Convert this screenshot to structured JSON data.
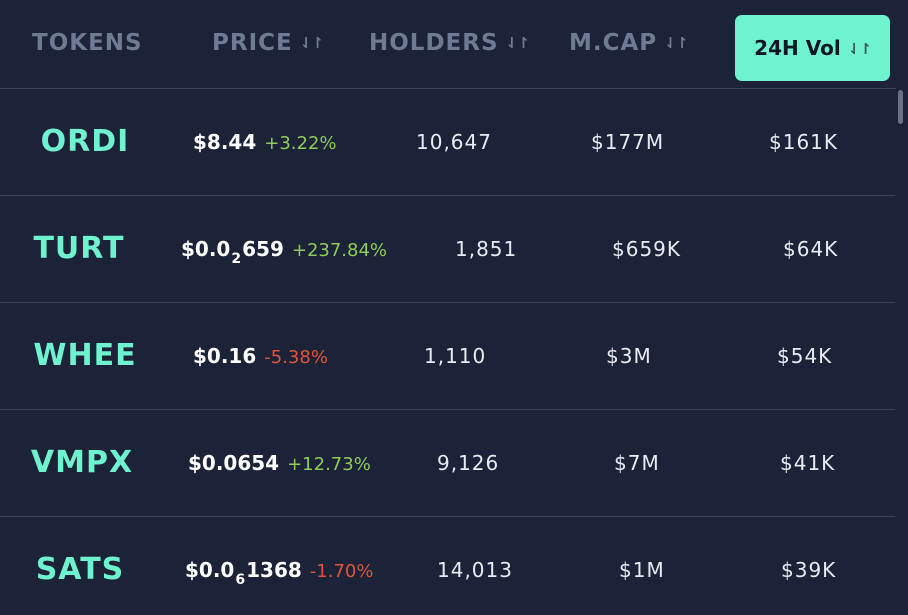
{
  "header": {
    "tokens_label": "TOKENS",
    "price_label": "PRICE",
    "holders_label": "HOLDERS",
    "mcap_label": "M.CAP",
    "vol_label": "24H Vol",
    "sort_icon": "⇃↾"
  },
  "rows": [
    {
      "token": "ORDI",
      "price_main": "$8.44",
      "price_sub": "",
      "price_tail": "",
      "change": "+3.22%",
      "holders": "10,647",
      "mcap": "$177M",
      "vol": "$161K"
    },
    {
      "token": "TURT",
      "price_main": "$0.0",
      "price_sub": "2",
      "price_tail": "659",
      "change": "+237.84%",
      "holders": "1,851",
      "mcap": "$659K",
      "vol": "$64K"
    },
    {
      "token": "WHEE",
      "price_main": "$0.16",
      "price_sub": "",
      "price_tail": "",
      "change": "-5.38%",
      "holders": "1,110",
      "mcap": "$3M",
      "vol": "$54K"
    },
    {
      "token": "VMPX",
      "price_main": "$0.0654",
      "price_sub": "",
      "price_tail": "",
      "change": "+12.73%",
      "holders": "9,126",
      "mcap": "$7M",
      "vol": "$41K"
    },
    {
      "token": "SATS",
      "price_main": "$0.0",
      "price_sub": "6",
      "price_tail": "1368",
      "change": "-1.70%",
      "holders": "14,013",
      "mcap": "$1M",
      "vol": "$39K"
    }
  ],
  "colors": {
    "background": "#1c2237",
    "accent": "#6ff3cf",
    "positive": "#8ccc5a",
    "negative": "#e0533c",
    "header_text": "#6f7b92"
  }
}
